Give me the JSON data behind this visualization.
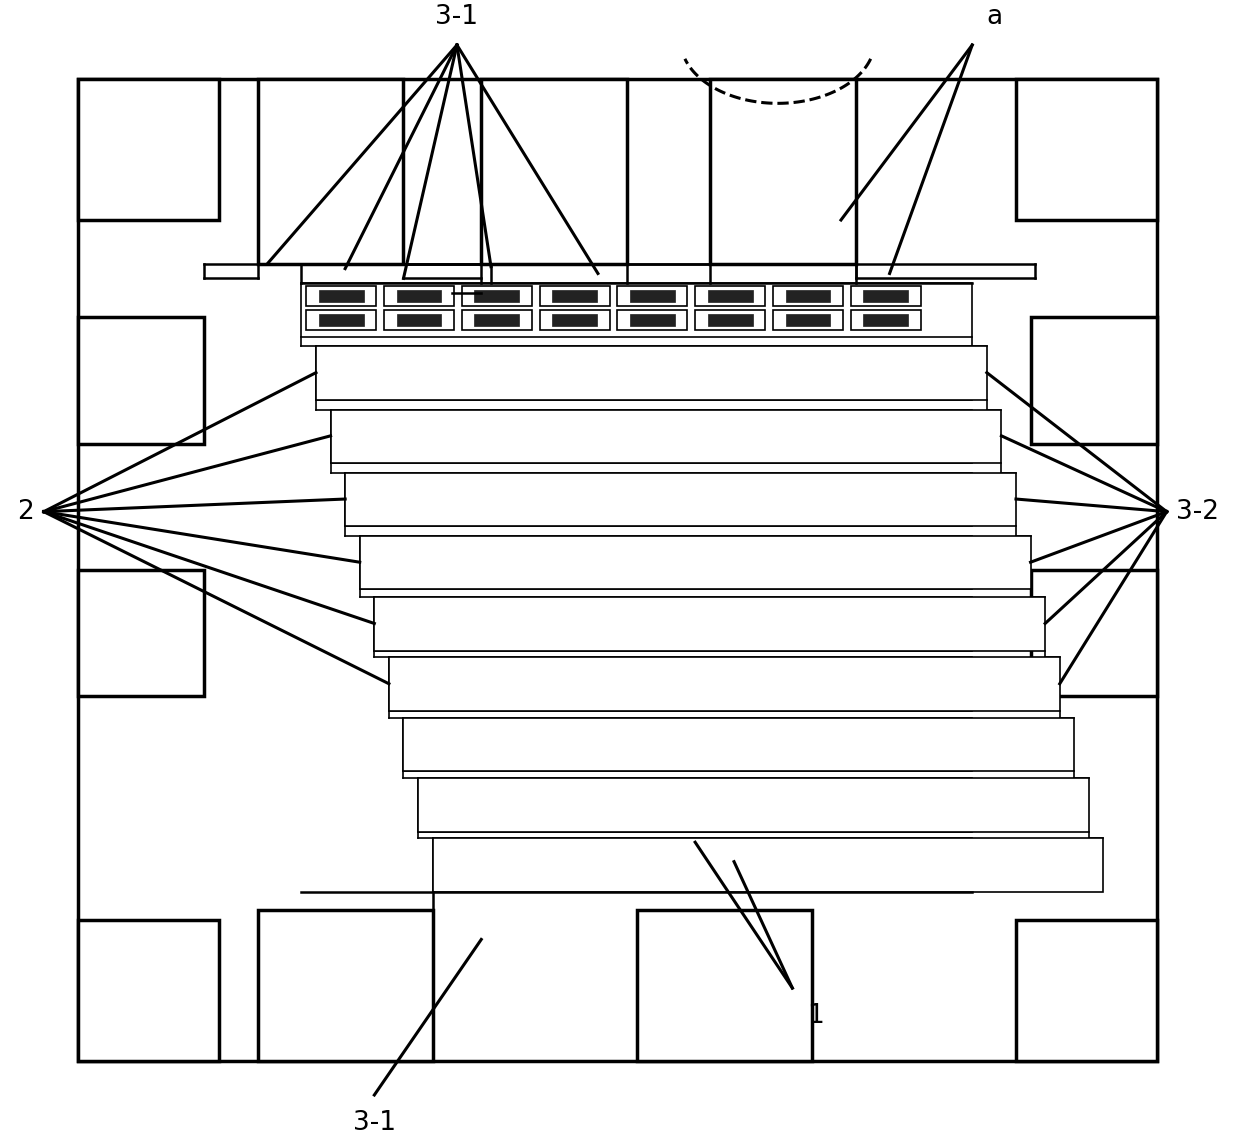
{
  "bg": "#ffffff",
  "lc": "#000000",
  "fig_w": 12.4,
  "fig_h": 11.4,
  "lw_thick": 2.5,
  "lw_mid": 1.8,
  "lw_thin": 1.2,
  "lw_ann": 2.2,
  "fs_label": 19
}
